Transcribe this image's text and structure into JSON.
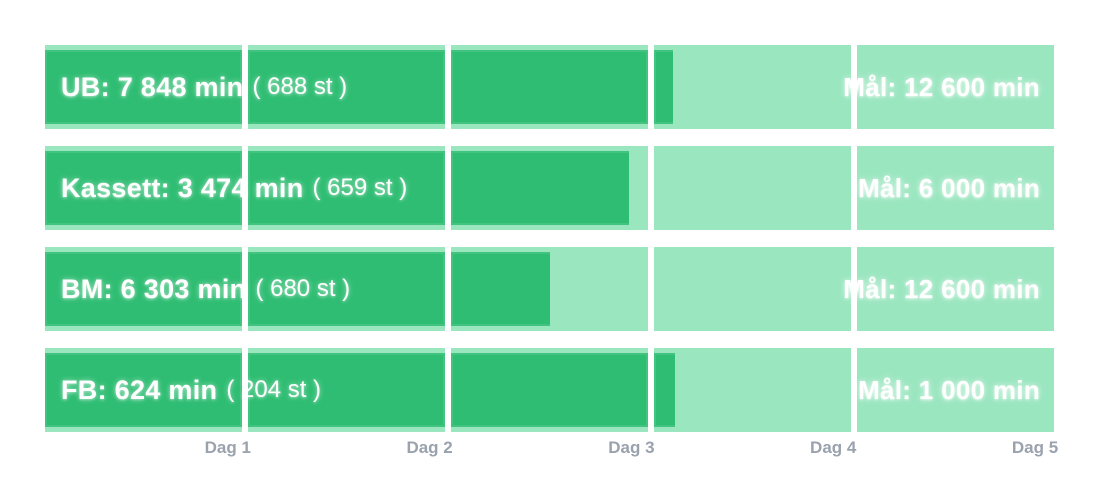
{
  "chart_data": {
    "type": "bar",
    "orientation": "horizontal",
    "title": "",
    "unit": "min",
    "legend": "none",
    "grid": "day-separators",
    "x_axis": {
      "labels": [
        "Dag 1",
        "Dag 2",
        "Dag 3",
        "Dag 4",
        "Dag 5"
      ],
      "segments": 5
    },
    "rows": [
      {
        "name": "UB",
        "label": "UB: 7 848 min",
        "count_label": "( 688 st )",
        "goal_label": "Mål: 12 600 min",
        "value_min": 7848,
        "count_st": 688,
        "goal_min": 12600
      },
      {
        "name": "Kassett",
        "label": "Kassett: 3 474 min",
        "count_label": "( 659 st )",
        "goal_label": "Mål: 6 000 min",
        "value_min": 3474,
        "count_st": 659,
        "goal_min": 6000
      },
      {
        "name": "BM",
        "label": "BM: 6 303 min",
        "count_label": "( 680 st )",
        "goal_label": "Mål: 12 600 min",
        "value_min": 6303,
        "count_st": 680,
        "goal_min": 12600
      },
      {
        "name": "FB",
        "label": "FB: 624 min",
        "count_label": "( 204 st )",
        "goal_label": "Mål: 1 000 min",
        "value_min": 624,
        "count_st": 204,
        "goal_min": 1000
      }
    ],
    "colors": {
      "fill": "#2ebd72",
      "track": "#99e6bf",
      "gap": "#ffffff",
      "bar_text": "#ffffff",
      "axis_text": "#9aa2ae",
      "background": "#ffffff"
    }
  }
}
